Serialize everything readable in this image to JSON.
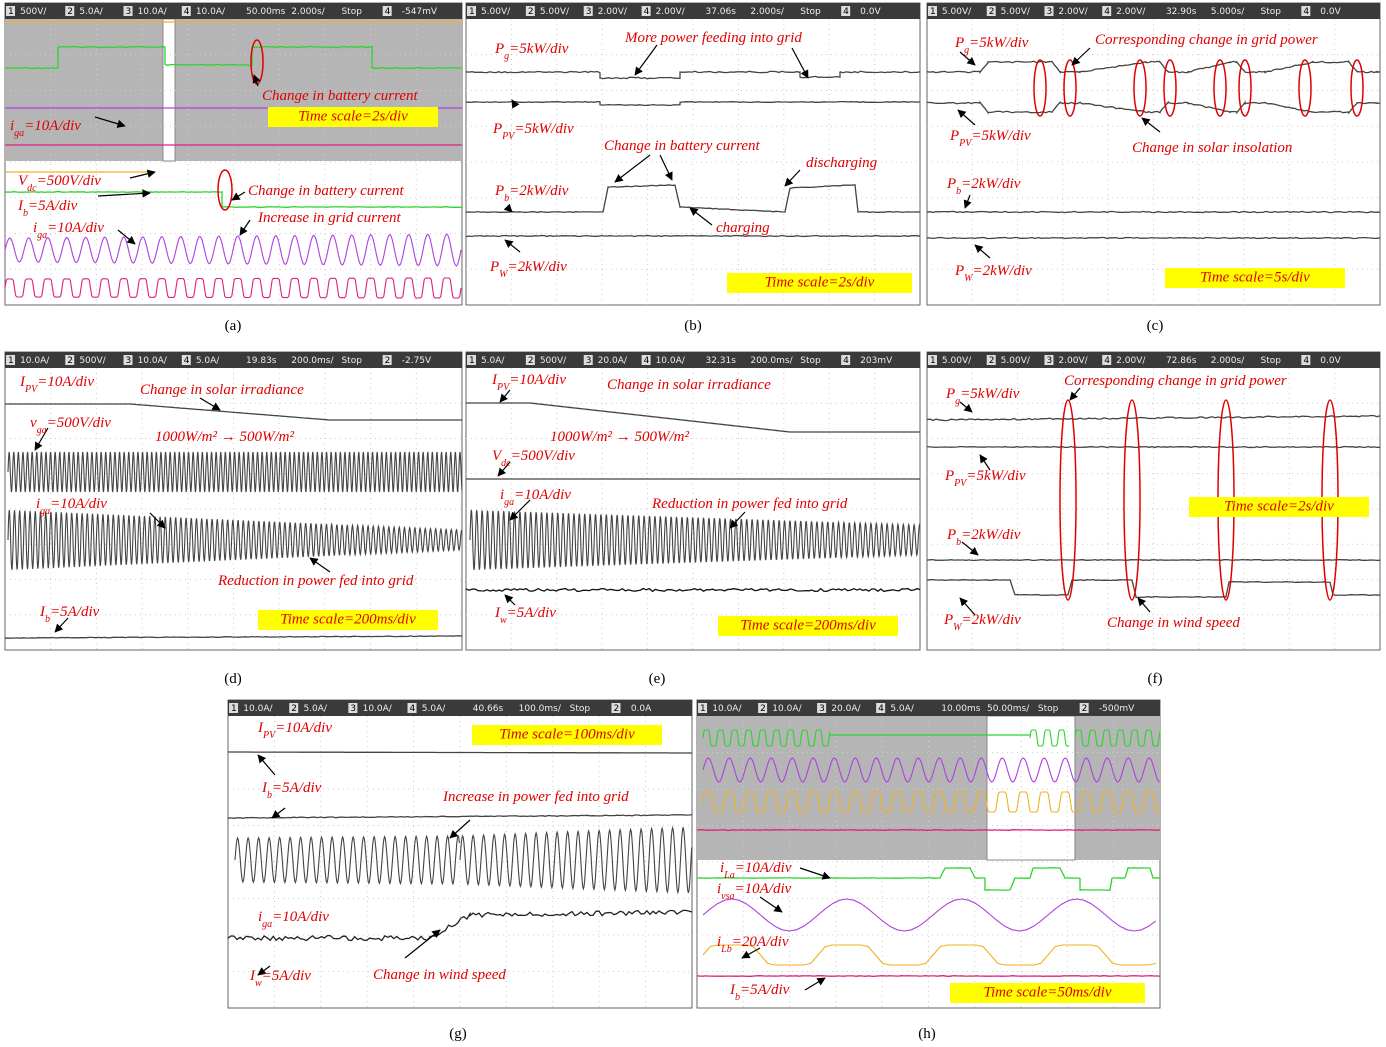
{
  "panels": [
    {
      "caption": "(a)",
      "header": [
        "1",
        "500V/",
        "2",
        "5.0A/",
        "3",
        "10.0A/",
        "4",
        "10.0A/",
        "50.00ms",
        "2.000s/",
        "Stop",
        "4",
        "-547mV"
      ],
      "labels": [
        [
          "Change in battery current"
        ],
        [
          "i",
          "ga",
          "=10A/div"
        ],
        [
          "V",
          "dc",
          "=500V/div"
        ],
        [
          "Change in battery current"
        ],
        [
          "I",
          "b",
          "=5A/div"
        ],
        [
          "Increase in grid current"
        ],
        [
          "i",
          "ga",
          "=10A/div"
        ]
      ],
      "timescale": "Time scale=2s/div"
    },
    {
      "caption": "(b)",
      "header": [
        "1",
        "5.00V/",
        "2",
        "5.00V/",
        "3",
        "2.00V/",
        "4",
        "2.00V/",
        "37.06s",
        "2.000s/",
        "Stop",
        "4",
        "0.0V"
      ],
      "labels": [
        [
          "More power feeding into grid"
        ],
        [
          "P",
          "g",
          "=5kW/div"
        ],
        [
          "P",
          "PV",
          "=5kW/div"
        ],
        [
          "Change in battery current"
        ],
        [
          "discharging"
        ],
        [
          "P",
          "b",
          "=2kW/div"
        ],
        [
          "charging"
        ],
        [
          "P",
          "W",
          "=2kW/div"
        ]
      ],
      "timescale": "Time scale=2s/div"
    },
    {
      "caption": "(c)",
      "header": [
        "1",
        "5.00V/",
        "2",
        "5.00V/",
        "3",
        "2.00V/",
        "4",
        "2.00V/",
        "32.90s",
        "5.000s/",
        "Stop",
        "4",
        "0.0V"
      ],
      "labels": [
        [
          "P",
          "g",
          "=5kW/div"
        ],
        [
          "Corresponding change in grid power"
        ],
        [
          "P",
          "PV",
          "=5kW/div"
        ],
        [
          "Change in solar insolation"
        ],
        [
          "P",
          "b",
          "=2kW/div"
        ],
        [
          "P",
          "W",
          "=2kW/div"
        ]
      ],
      "timescale": "Time scale=5s/div"
    },
    {
      "caption": "(d)",
      "header": [
        "1",
        "10.0A/",
        "2",
        "500V/",
        "3",
        "10.0A/",
        "4",
        "5.0A/",
        "19.83s",
        "200.0ms/",
        "Stop",
        "2",
        "-2.75V"
      ],
      "labels": [
        [
          "I",
          "PV",
          "=10A/div"
        ],
        [
          "Change in solar irradiance"
        ],
        [
          "v",
          "ga",
          "=500V/div"
        ],
        [
          "1000W/m² → 500W/m²"
        ],
        [
          "i",
          "ga",
          "=10A/div"
        ],
        [
          "Reduction in power fed into grid"
        ],
        [
          "I",
          "b",
          "=5A/div"
        ]
      ],
      "timescale": "Time scale=200ms/div"
    },
    {
      "caption": "(e)",
      "header": [
        "1",
        "5.0A/",
        "2",
        "500V/",
        "3",
        "20.0A/",
        "4",
        "10.0A/",
        "32.31s",
        "200.0ms/",
        "Stop",
        "4",
        "203mV"
      ],
      "labels": [
        [
          "I",
          "PV",
          "=10A/div"
        ],
        [
          "Change in solar irradiance"
        ],
        [
          "1000W/m² → 500W/m²"
        ],
        [
          "V",
          "dc",
          "=500V/div"
        ],
        [
          "i",
          "ga",
          "=10A/div"
        ],
        [
          "Reduction in power fed into grid"
        ],
        [
          "I",
          "w",
          "=5A/div"
        ]
      ],
      "timescale": "Time scale=200ms/div"
    },
    {
      "caption": "(f)",
      "header": [
        "1",
        "5.00V/",
        "2",
        "5.00V/",
        "3",
        "2.00V/",
        "4",
        "2.00V/",
        "72.86s",
        "2.000s/",
        "Stop",
        "4",
        "0.0V"
      ],
      "labels": [
        [
          "P",
          "g",
          "=5kW/div"
        ],
        [
          "Corresponding change in grid power"
        ],
        [
          "P",
          "PV",
          "=5kW/div"
        ],
        [
          "P",
          "b",
          "=2kW/div"
        ],
        [
          "P",
          "W",
          "=2kW/div"
        ],
        [
          "Change in wind speed"
        ]
      ],
      "timescale": "Time scale=2s/div"
    },
    {
      "caption": "(g)",
      "header": [
        "1",
        "10.0A/",
        "2",
        "5.0A/",
        "3",
        "10.0A/",
        "4",
        "5.0A/",
        "40.66s",
        "100.0ms/",
        "Stop",
        "2",
        "0.0A"
      ],
      "labels": [
        [
          "I",
          "PV",
          "=10A/div"
        ],
        [
          "I",
          "b",
          "=5A/div"
        ],
        [
          "Increase in power fed into grid"
        ],
        [
          "i",
          "ga",
          "=10A/div"
        ],
        [
          "I",
          "w",
          "=5A/div"
        ],
        [
          "Change in wind speed"
        ]
      ],
      "timescale": "Time scale=100ms/div"
    },
    {
      "caption": "(h)",
      "header": [
        "1",
        "10.0A/",
        "2",
        "10.0A/",
        "3",
        "20.0A/",
        "4",
        "5.0A/",
        "10.00ms",
        "50.00ms/",
        "Stop",
        "2",
        "-500mV"
      ],
      "labels": [
        [
          "i",
          "La",
          "=10A/div"
        ],
        [
          "i",
          "vsa",
          "=10A/div"
        ],
        [
          "i",
          "Lb",
          "=20A/div"
        ],
        [
          "I",
          "b",
          "=5A/div"
        ]
      ],
      "timescale": "Time scale=50ms/div"
    }
  ]
}
